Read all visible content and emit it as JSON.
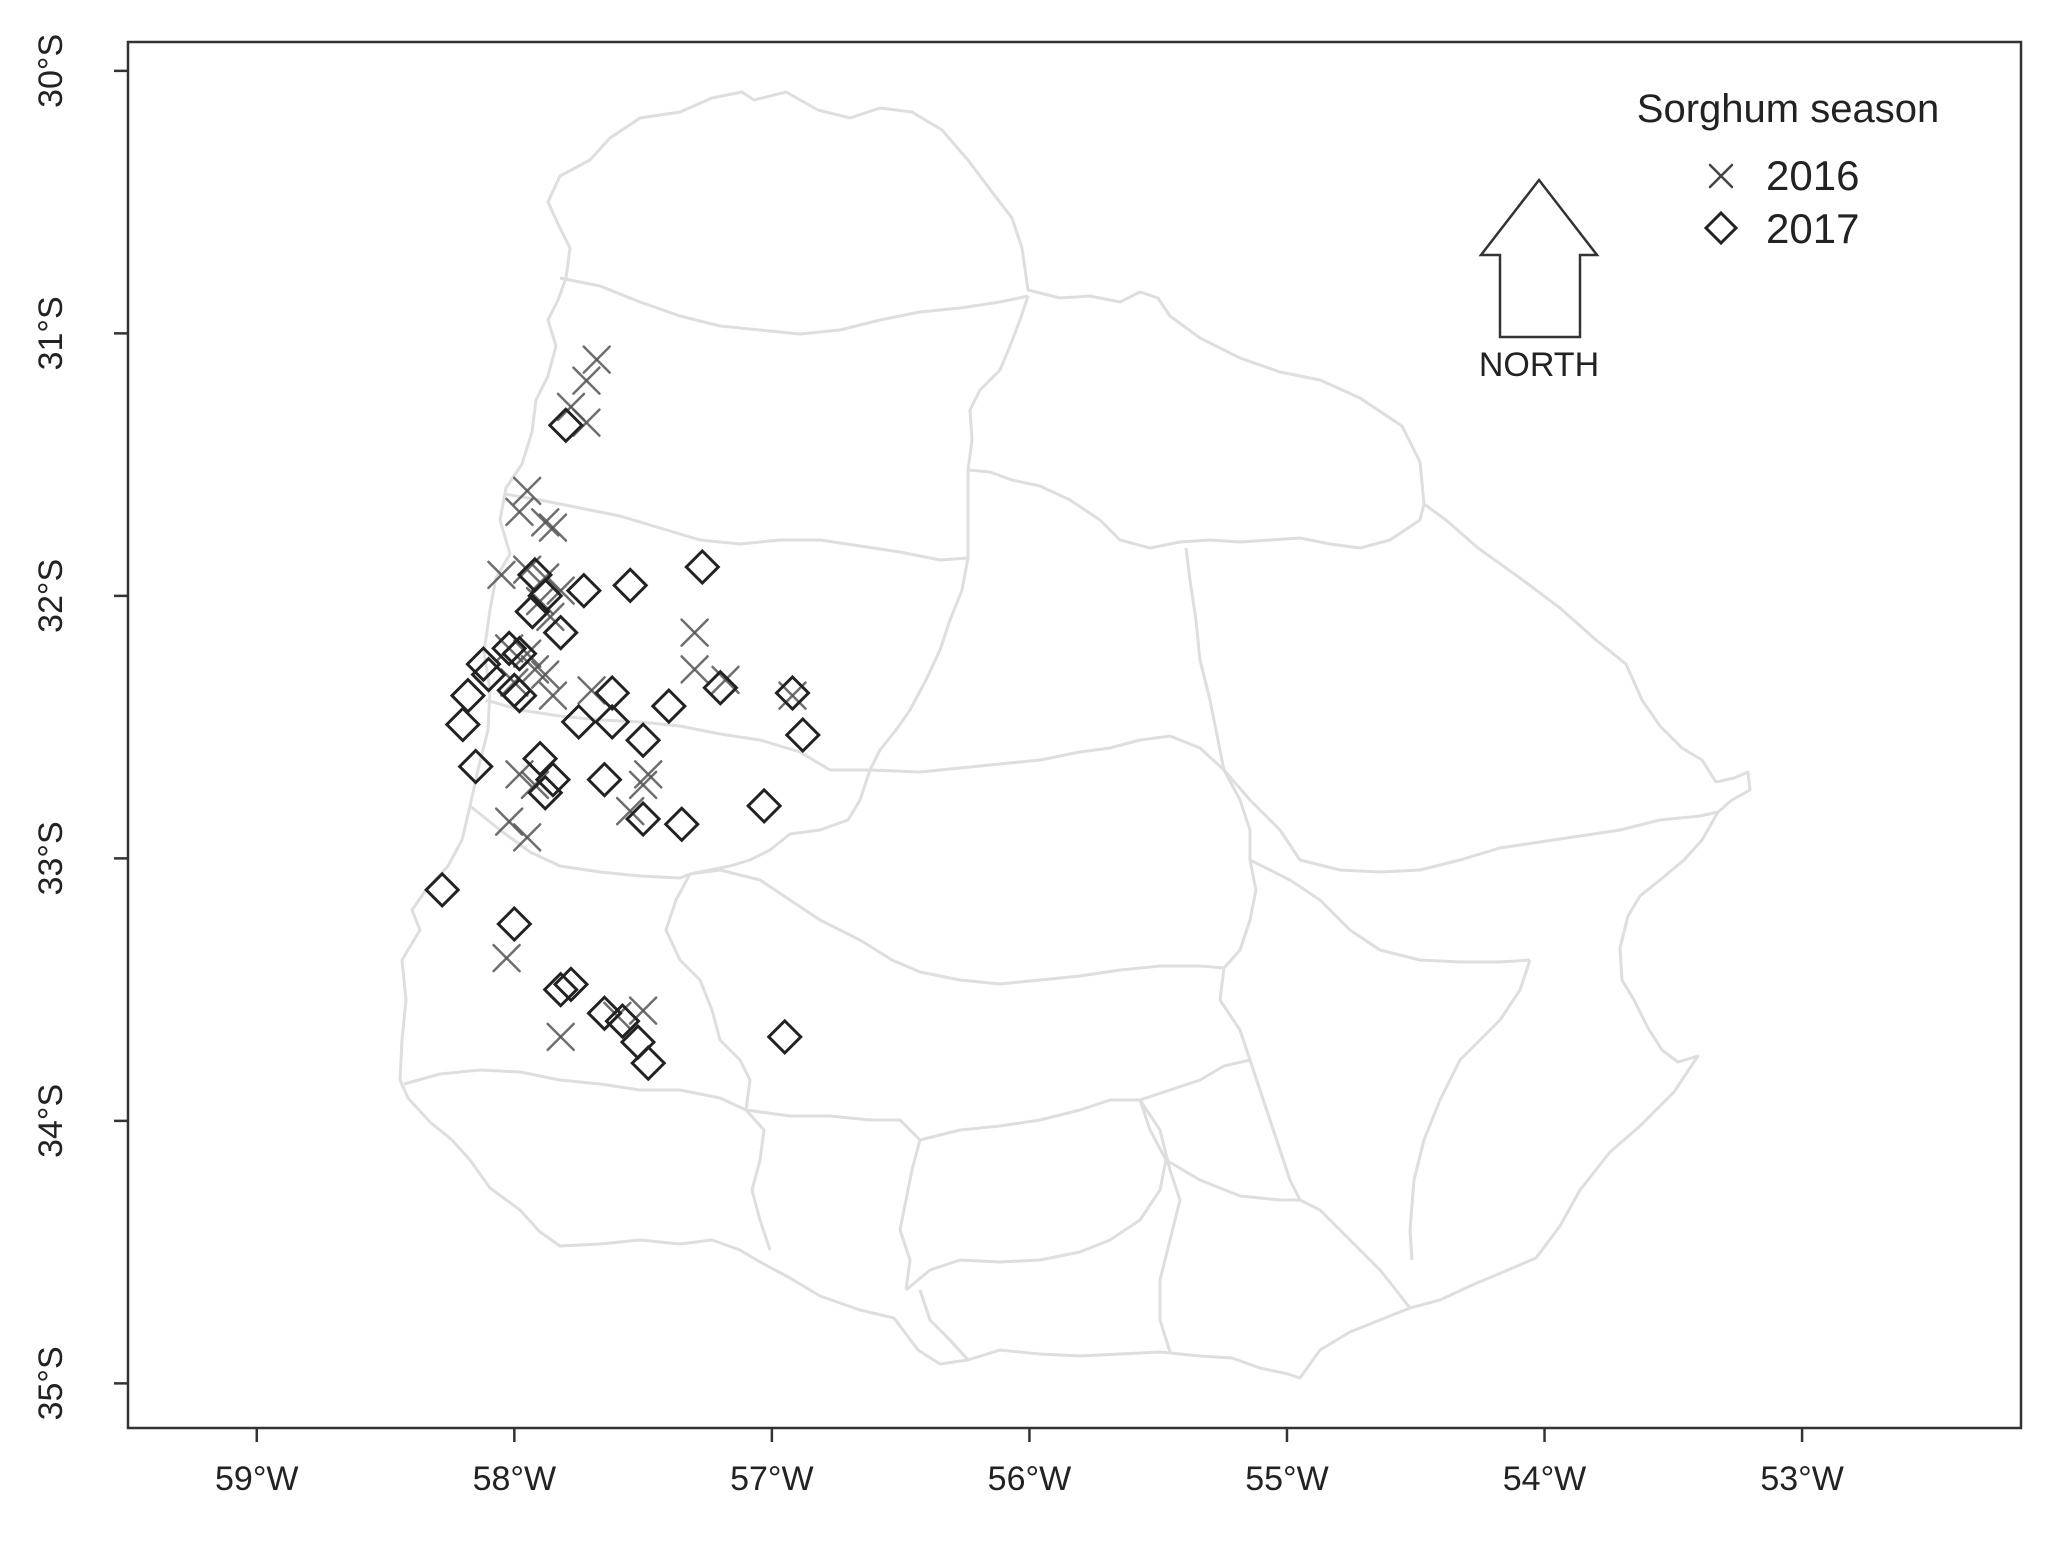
{
  "map": {
    "title": "",
    "x_range": [
      -59.5,
      -52.15
    ],
    "y_range": [
      -35.17,
      -29.89
    ],
    "x_ticks": [
      {
        "value": -59,
        "label": "59°W"
      },
      {
        "value": -58,
        "label": "58°W"
      },
      {
        "value": -57,
        "label": "57°W"
      },
      {
        "value": -56,
        "label": "56°W"
      },
      {
        "value": -55,
        "label": "55°W"
      },
      {
        "value": -54,
        "label": "54°W"
      },
      {
        "value": -53,
        "label": "53°W"
      }
    ],
    "y_ticks": [
      {
        "value": -30,
        "label": "30°S"
      },
      {
        "value": -31,
        "label": "31°S"
      },
      {
        "value": -32,
        "label": "32°S"
      },
      {
        "value": -33,
        "label": "33°S"
      },
      {
        "value": -34,
        "label": "34°S"
      },
      {
        "value": -35,
        "label": "35°S"
      }
    ],
    "boundary_color": "#dedede",
    "marker_color": "#333333"
  },
  "legend": {
    "title": "Sorghum season",
    "placement": "top-right",
    "items": [
      {
        "label": "2016",
        "marker": "cross-icon"
      },
      {
        "label": "2017",
        "marker": "diamond-icon"
      }
    ]
  },
  "north_arrow": {
    "label": "NORTH",
    "icon": "north-arrow-icon"
  },
  "chart_data": {
    "type": "scatter",
    "xlabel": "",
    "ylabel": "",
    "series": [
      {
        "name": "2016",
        "marker": "x",
        "points": [
          [
            -57.68,
            -31.1
          ],
          [
            -57.72,
            -31.18
          ],
          [
            -57.78,
            -31.28
          ],
          [
            -57.72,
            -31.34
          ],
          [
            -57.95,
            -31.6
          ],
          [
            -57.98,
            -31.68
          ],
          [
            -57.88,
            -31.72
          ],
          [
            -57.85,
            -31.74
          ],
          [
            -58.05,
            -31.92
          ],
          [
            -57.95,
            -31.9
          ],
          [
            -57.88,
            -31.93
          ],
          [
            -57.82,
            -31.98
          ],
          [
            -57.9,
            -32.02
          ],
          [
            -57.86,
            -32.08
          ],
          [
            -58.02,
            -32.2
          ],
          [
            -57.95,
            -32.22
          ],
          [
            -57.92,
            -32.28
          ],
          [
            -57.88,
            -32.3
          ],
          [
            -58.0,
            -32.33
          ],
          [
            -57.85,
            -32.38
          ],
          [
            -57.7,
            -32.36
          ],
          [
            -57.3,
            -32.14
          ],
          [
            -57.3,
            -32.28
          ],
          [
            -57.18,
            -32.32
          ],
          [
            -56.92,
            -32.38
          ],
          [
            -57.98,
            -32.68
          ],
          [
            -57.92,
            -32.72
          ],
          [
            -57.48,
            -32.68
          ],
          [
            -57.5,
            -32.72
          ],
          [
            -57.55,
            -32.82
          ],
          [
            -58.02,
            -32.86
          ],
          [
            -57.95,
            -32.92
          ],
          [
            -58.03,
            -33.38
          ],
          [
            -57.5,
            -33.58
          ],
          [
            -57.6,
            -33.6
          ],
          [
            -57.82,
            -33.68
          ]
        ]
      },
      {
        "name": "2017",
        "marker": "diamond",
        "points": [
          [
            -57.8,
            -31.35
          ],
          [
            -57.27,
            -31.89
          ],
          [
            -57.55,
            -31.96
          ],
          [
            -57.73,
            -31.98
          ],
          [
            -57.92,
            -31.92
          ],
          [
            -57.88,
            -32.0
          ],
          [
            -57.93,
            -32.06
          ],
          [
            -57.82,
            -32.14
          ],
          [
            -58.12,
            -32.26
          ],
          [
            -58.1,
            -32.3
          ],
          [
            -58.02,
            -32.2
          ],
          [
            -57.98,
            -32.22
          ],
          [
            -58.0,
            -32.36
          ],
          [
            -57.98,
            -32.38
          ],
          [
            -58.18,
            -32.38
          ],
          [
            -57.62,
            -32.37
          ],
          [
            -57.2,
            -32.35
          ],
          [
            -56.92,
            -32.37
          ],
          [
            -57.4,
            -32.42
          ],
          [
            -57.75,
            -32.48
          ],
          [
            -57.62,
            -32.48
          ],
          [
            -58.2,
            -32.49
          ],
          [
            -57.5,
            -32.55
          ],
          [
            -56.88,
            -32.53
          ],
          [
            -57.9,
            -32.62
          ],
          [
            -58.15,
            -32.65
          ],
          [
            -57.85,
            -32.7
          ],
          [
            -57.65,
            -32.7
          ],
          [
            -57.88,
            -32.75
          ],
          [
            -57.5,
            -32.85
          ],
          [
            -57.35,
            -32.87
          ],
          [
            -57.03,
            -32.8
          ],
          [
            -58.28,
            -33.12
          ],
          [
            -58.0,
            -33.25
          ],
          [
            -57.78,
            -33.48
          ],
          [
            -57.82,
            -33.5
          ],
          [
            -57.65,
            -33.59
          ],
          [
            -57.58,
            -33.62
          ],
          [
            -57.52,
            -33.7
          ],
          [
            -57.48,
            -33.78
          ],
          [
            -56.95,
            -33.68
          ]
        ]
      }
    ]
  }
}
